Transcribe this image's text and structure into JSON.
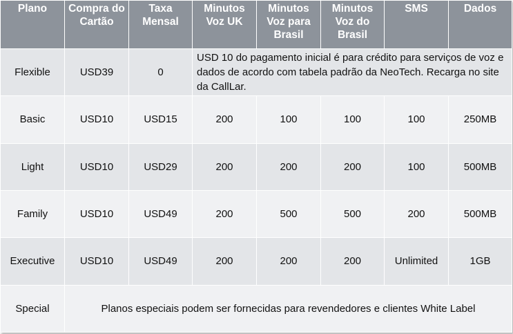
{
  "table": {
    "headers": [
      "Plano",
      "Compra do Cartão",
      "Taxa Mensal",
      "Minutos Voz UK",
      "Minutos Voz para Brasil",
      "Minutos Voz do Brasil",
      "SMS",
      "Dados"
    ],
    "flexible": {
      "plano": "Flexible",
      "compra": "USD39",
      "taxa": "0",
      "note": "USD 10 do pagamento inicial é para crédito para serviços de voz e dados de acordo com tabela padrão da NeoTech. Recarga no site da CallLar."
    },
    "rows": [
      {
        "plano": "Basic",
        "compra": "USD10",
        "taxa": "USD15",
        "voz_uk": "200",
        "voz_para_brasil": "100",
        "voz_do_brasil": "100",
        "sms": "100",
        "dados": "250MB"
      },
      {
        "plano": "Light",
        "compra": "USD10",
        "taxa": "USD29",
        "voz_uk": "200",
        "voz_para_brasil": "200",
        "voz_do_brasil": "200",
        "sms": "100",
        "dados": "500MB"
      },
      {
        "plano": "Family",
        "compra": "USD10",
        "taxa": "USD49",
        "voz_uk": "200",
        "voz_para_brasil": "500",
        "voz_do_brasil": "500",
        "sms": "200",
        "dados": "500MB"
      },
      {
        "plano": "Executive",
        "compra": "USD10",
        "taxa": "USD49",
        "voz_uk": "200",
        "voz_para_brasil": "200",
        "voz_do_brasil": "200",
        "sms": "Unlimited",
        "dados": "1GB"
      }
    ],
    "special": {
      "plano": "Special",
      "note": "Planos especiais podem ser fornecidas para revendedores e clientes White Label"
    }
  },
  "colors": {
    "header_bg": "#8d939b",
    "row_shade_a": "#e3e5e8",
    "row_shade_b": "#f0f1f3"
  }
}
